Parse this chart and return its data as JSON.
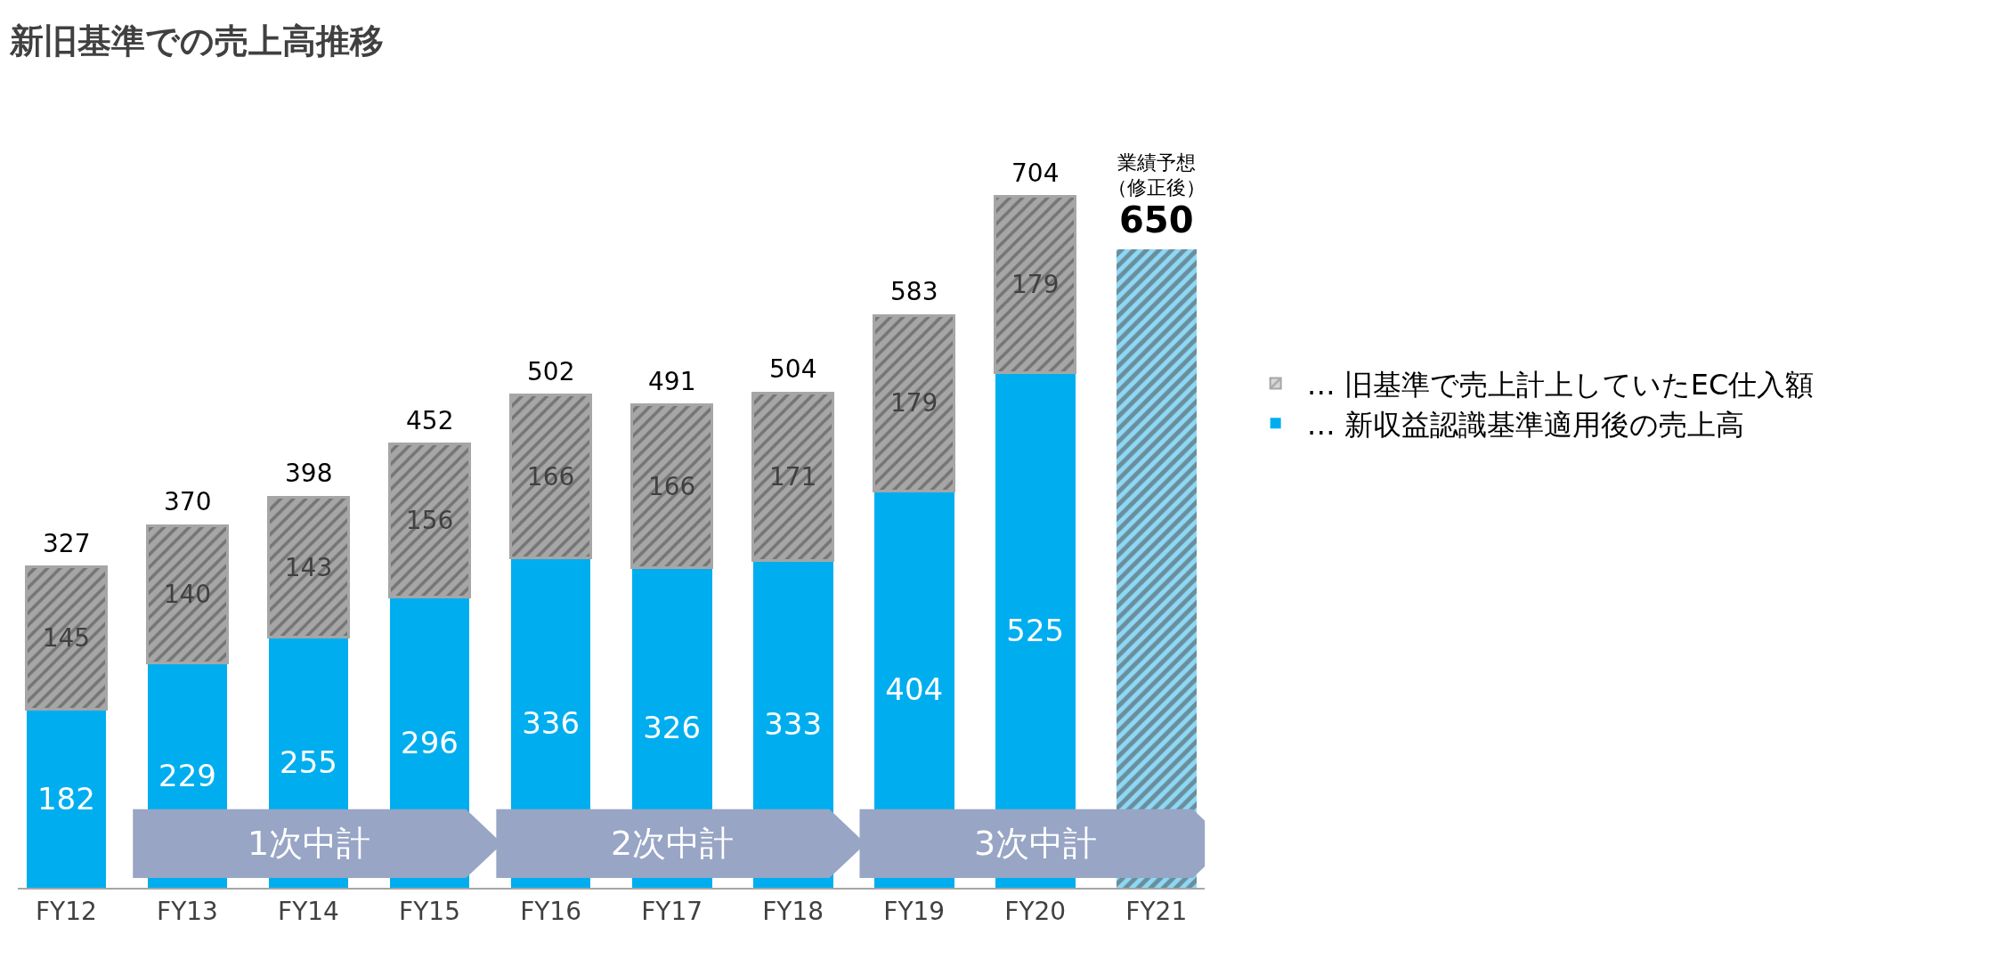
{
  "chart_data": {
    "type": "bar",
    "title": "新旧基準での売上高推移",
    "categories": [
      "FY12",
      "FY13",
      "FY14",
      "FY15",
      "FY16",
      "FY17",
      "FY18",
      "FY19",
      "FY20",
      "FY21"
    ],
    "stacked": true,
    "series": [
      {
        "name": "… 新収益認識基準適用後の売上高",
        "color": "#00aeef",
        "colors": [
          "#00aeef",
          "#00aeef",
          "#00aeef",
          "#00aeef",
          "#00aeef",
          "#00aeef",
          "#00aeef",
          "#00aeef",
          "#00aeef",
          "#8fd8f5"
        ],
        "values": [
          182,
          229,
          255,
          296,
          336,
          326,
          333,
          404,
          525,
          650
        ],
        "value_labels": [
          "182",
          "229",
          "255",
          "296",
          "336",
          "326",
          "333",
          "404",
          "525",
          null
        ]
      },
      {
        "name": "… 旧基準で売上計上していたEC仕入額",
        "color": "#a6a6a6",
        "values": [
          145,
          140,
          143,
          156,
          166,
          166,
          171,
          179,
          179,
          null
        ],
        "value_labels": [
          "145",
          "140",
          "143",
          "156",
          "166",
          "166",
          "171",
          "179",
          "179",
          null
        ]
      }
    ],
    "totals": [
      "327",
      "370",
      "398",
      "452",
      "502",
      "491",
      "504",
      "583",
      "704",
      "650"
    ],
    "annotations": [
      "業績予想",
      "（修正後）",
      "1次中計",
      "2次中計",
      "3次中計"
    ],
    "legend": "right"
  }
}
